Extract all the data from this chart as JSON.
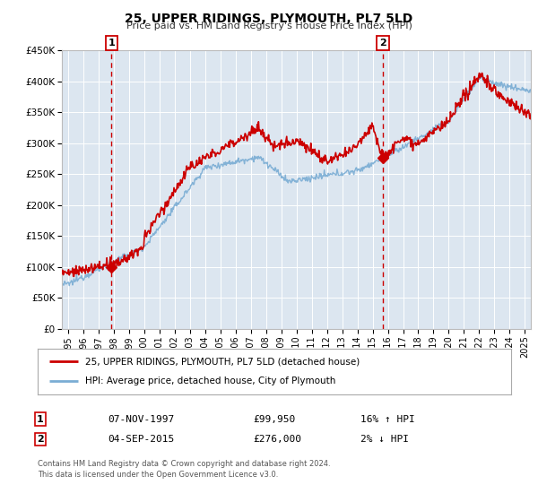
{
  "title": "25, UPPER RIDINGS, PLYMOUTH, PL7 5LD",
  "subtitle": "Price paid vs. HM Land Registry's House Price Index (HPI)",
  "background_color": "#ffffff",
  "plot_bg_color": "#dce6f0",
  "grid_color": "#ffffff",
  "red_line_color": "#cc0000",
  "blue_line_color": "#7aadd4",
  "marker1_date": 1997.86,
  "marker1_value": 99950,
  "marker2_date": 2015.67,
  "marker2_value": 276000,
  "vline1_date": 1997.86,
  "vline2_date": 2015.67,
  "ylim": [
    0,
    450000
  ],
  "xlim_start": 1994.6,
  "xlim_end": 2025.4,
  "legend_label1": "25, UPPER RIDINGS, PLYMOUTH, PL7 5LD (detached house)",
  "legend_label2": "HPI: Average price, detached house, City of Plymouth",
  "annotation1_label": "1",
  "annotation2_label": "2",
  "table1_date": "07-NOV-1997",
  "table1_price": "£99,950",
  "table1_hpi": "16% ↑ HPI",
  "table2_date": "04-SEP-2015",
  "table2_price": "£276,000",
  "table2_hpi": "2% ↓ HPI",
  "footer1": "Contains HM Land Registry data © Crown copyright and database right 2024.",
  "footer2": "This data is licensed under the Open Government Licence v3.0.",
  "yticks": [
    0,
    50000,
    100000,
    150000,
    200000,
    250000,
    300000,
    350000,
    400000,
    450000
  ],
  "ytick_labels": [
    "£0",
    "£50K",
    "£100K",
    "£150K",
    "£200K",
    "£250K",
    "£300K",
    "£350K",
    "£400K",
    "£450K"
  ],
  "xticks": [
    1995,
    1996,
    1997,
    1998,
    1999,
    2000,
    2001,
    2002,
    2003,
    2004,
    2005,
    2006,
    2007,
    2008,
    2009,
    2010,
    2011,
    2012,
    2013,
    2014,
    2015,
    2016,
    2017,
    2018,
    2019,
    2020,
    2021,
    2022,
    2023,
    2024,
    2025
  ]
}
